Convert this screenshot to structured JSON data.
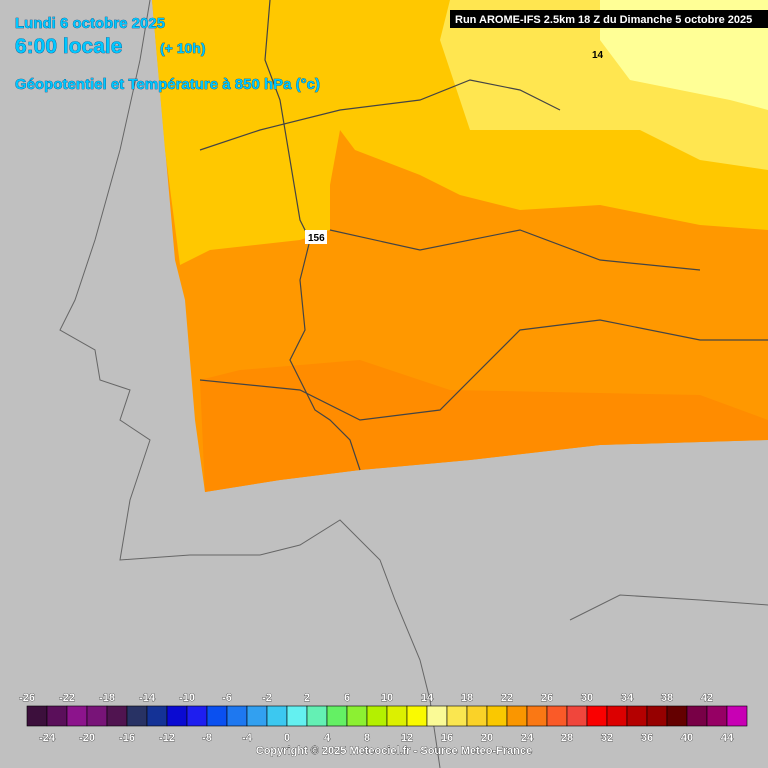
{
  "header": {
    "date": "Lundi 6 octobre 2025",
    "time": "6:00 locale",
    "offset": "(+ 10h)",
    "parameter": "Géopotentiel et Température à 850 hPa (°c)",
    "run": "Run AROME-IFS 2.5km 18 Z du Dimanche 5 octobre 2025"
  },
  "map_labels": [
    "14",
    "156"
  ],
  "legend": {
    "labels": [
      -26,
      -24,
      -22,
      -20,
      -18,
      -16,
      -14,
      -12,
      -10,
      -8,
      -6,
      -4,
      -2,
      0,
      2,
      4,
      6,
      8,
      10,
      12,
      14,
      16,
      18,
      20,
      22,
      24,
      26,
      28,
      30,
      32,
      34,
      36,
      38,
      40,
      42,
      44
    ],
    "colors": [
      "#3c0f3c",
      "#5a0f5a",
      "#8c148c",
      "#781478",
      "#501450",
      "#283264",
      "#143296",
      "#0a0ad2",
      "#1e1ef0",
      "#0a50f0",
      "#1e78f0",
      "#32a0f0",
      "#3cc8f0",
      "#64f0f0",
      "#64f0b4",
      "#64f064",
      "#8cf032",
      "#b4f000",
      "#dcf000",
      "#fafa00",
      "#fafa96",
      "#fae650",
      "#fad228",
      "#fac800",
      "#fa9600",
      "#fa7814",
      "#fa5a28",
      "#f0463c",
      "#fa0000",
      "#dc0000",
      "#b40000",
      "#960000",
      "#640000",
      "#780046",
      "#960064",
      "#c800b4",
      "#fa00fa",
      "#fa8cfa"
    ]
  },
  "footer": "Copyright © 2025 Meteociel.fr - Source Meteo-France"
}
